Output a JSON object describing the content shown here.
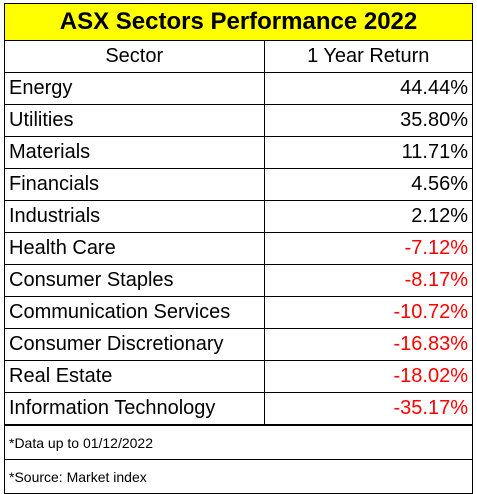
{
  "colors": {
    "title_bg": "#ffff00",
    "positive": "#000000",
    "negative": "#ff0000"
  },
  "chart_data": {
    "type": "table",
    "title": "ASX Sectors Performance 2022",
    "columns": [
      "Sector",
      "1 Year Return"
    ],
    "rows": [
      {
        "sector": "Energy",
        "return": "44.44%",
        "value": 44.44
      },
      {
        "sector": "Utilities",
        "return": "35.80%",
        "value": 35.8
      },
      {
        "sector": "Materials",
        "return": "11.71%",
        "value": 11.71
      },
      {
        "sector": "Financials",
        "return": "4.56%",
        "value": 4.56
      },
      {
        "sector": "Industrials",
        "return": "2.12%",
        "value": 2.12
      },
      {
        "sector": "Health Care",
        "return": "-7.12%",
        "value": -7.12
      },
      {
        "sector": "Consumer Staples",
        "return": "-8.17%",
        "value": -8.17
      },
      {
        "sector": "Communication Services",
        "return": "-10.72%",
        "value": -10.72
      },
      {
        "sector": "Consumer Discretionary",
        "return": "-16.83%",
        "value": -16.83
      },
      {
        "sector": "Real Estate",
        "return": "-18.02%",
        "value": -18.02
      },
      {
        "sector": "Information Technology",
        "return": "-35.17%",
        "value": -35.17
      }
    ],
    "notes": [
      "*Data up to 01/12/2022",
      "*Source: Market index"
    ]
  }
}
